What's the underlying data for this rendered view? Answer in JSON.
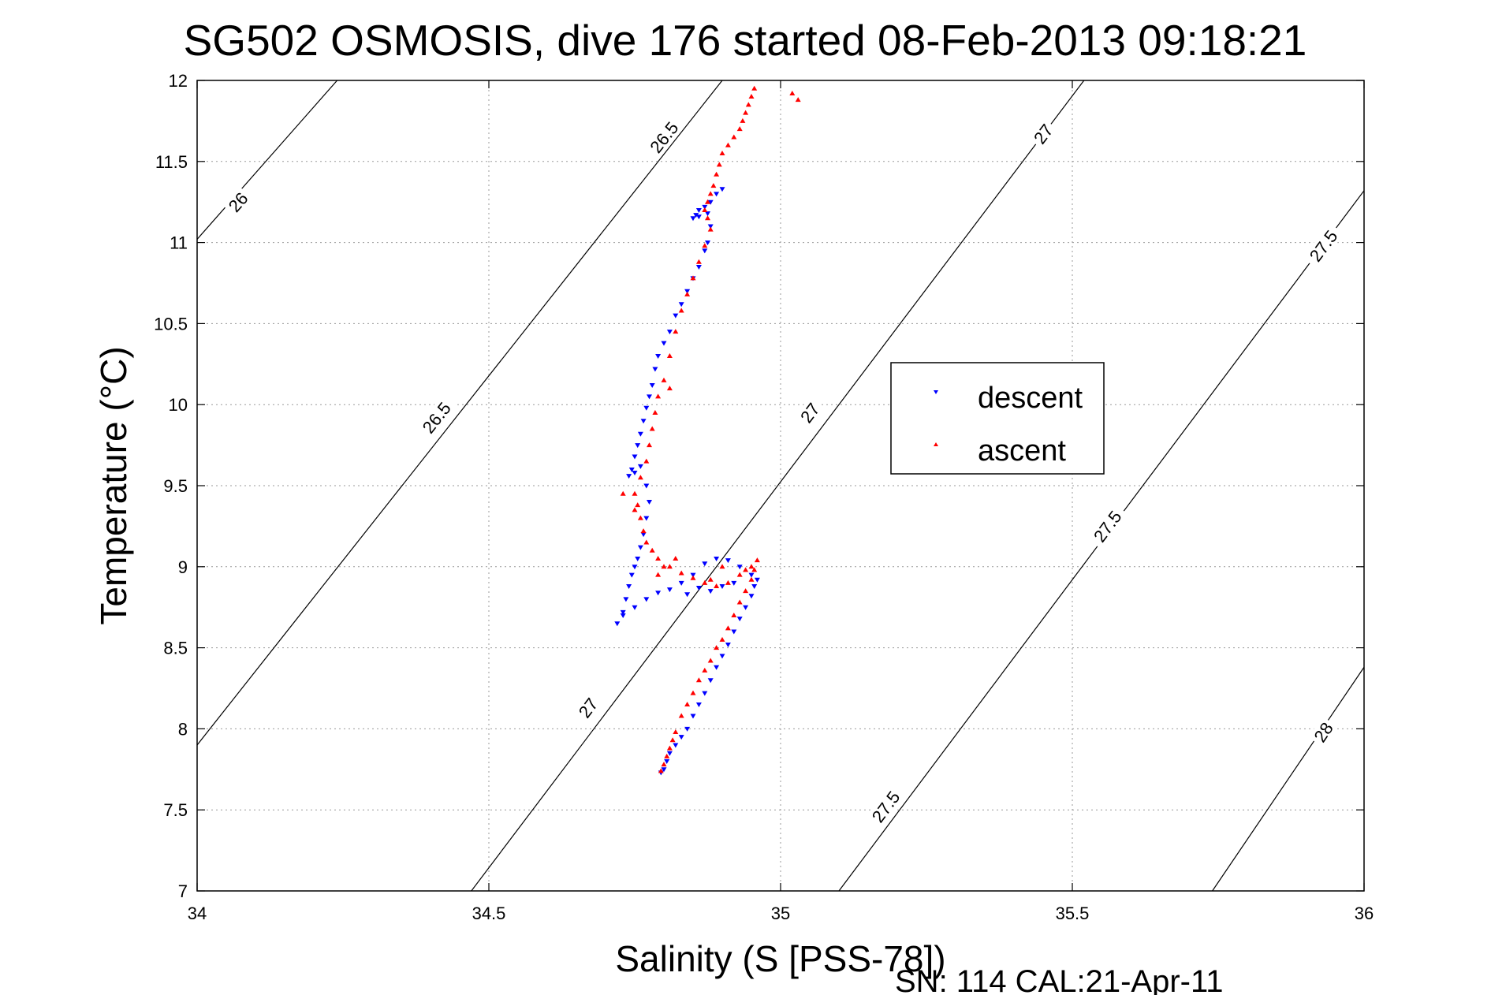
{
  "chart_data": {
    "type": "scatter",
    "title": "SG502 OSMOSIS, dive 176 started 08-Feb-2013 09:18:21",
    "xlabel": "Salinity (S [PSS-78])",
    "ylabel": "Temperature (°C)",
    "xlim": [
      34,
      36
    ],
    "ylim": [
      7,
      12
    ],
    "x_ticks": [
      "34",
      "34.5",
      "35",
      "35.5",
      "36"
    ],
    "y_ticks": [
      "7",
      "7.5",
      "8",
      "8.5",
      "9",
      "9.5",
      "10",
      "10.5",
      "11",
      "11.5",
      "12"
    ],
    "grid": true,
    "legend_position": "right",
    "footer": "SN: 114  CAL:21-Apr-11",
    "contours": [
      {
        "label": "26",
        "points": [
          [
            34.0,
            11.02
          ],
          [
            34.24,
            12.0
          ]
        ],
        "label_at": [
          34.07,
          11.25
        ]
      },
      {
        "label": "26.5",
        "points": [
          [
            34.0,
            7.9
          ],
          [
            34.9,
            12.0
          ]
        ],
        "label_at": [
          34.41,
          9.92
        ]
      },
      {
        "label": "26.5",
        "points": [
          [
            34.0,
            7.9
          ],
          [
            34.9,
            12.0
          ]
        ],
        "label_at": [
          34.8,
          11.65
        ]
      },
      {
        "label": "27",
        "points": [
          [
            34.47,
            7.0
          ],
          [
            35.52,
            12.0
          ]
        ],
        "label_at": [
          34.67,
          8.13
        ]
      },
      {
        "label": "27",
        "points": [
          [
            34.47,
            7.0
          ],
          [
            35.52,
            12.0
          ]
        ],
        "label_at": [
          35.05,
          9.95
        ]
      },
      {
        "label": "27",
        "points": [
          [
            34.47,
            7.0
          ],
          [
            35.52,
            12.0
          ]
        ],
        "label_at": [
          35.45,
          11.67
        ]
      },
      {
        "label": "27.5",
        "points": [
          [
            35.1,
            7.0
          ],
          [
            36.0,
            11.32
          ]
        ],
        "label_at": [
          35.18,
          7.52
        ]
      },
      {
        "label": "27.5",
        "points": [
          [
            35.1,
            7.0
          ],
          [
            36.0,
            11.32
          ]
        ],
        "label_at": [
          35.56,
          9.25
        ]
      },
      {
        "label": "27.5",
        "points": [
          [
            35.1,
            7.0
          ],
          [
            36.0,
            11.32
          ]
        ],
        "label_at": [
          35.93,
          10.98
        ]
      },
      {
        "label": "28",
        "points": [
          [
            35.74,
            7.0
          ],
          [
            36.0,
            8.38
          ]
        ],
        "label_at": [
          35.93,
          7.98
        ]
      }
    ],
    "series": [
      {
        "name": "descent",
        "color": "#0000ff",
        "marker": "triangle-down",
        "points": [
          [
            34.9,
            11.33
          ],
          [
            34.89,
            11.3
          ],
          [
            34.88,
            11.25
          ],
          [
            34.87,
            11.22
          ],
          [
            34.86,
            11.2
          ],
          [
            34.855,
            11.17
          ],
          [
            34.85,
            11.15
          ],
          [
            34.86,
            11.16
          ],
          [
            34.875,
            11.18
          ],
          [
            34.88,
            11.1
          ],
          [
            34.875,
            11.0
          ],
          [
            34.87,
            10.95
          ],
          [
            34.86,
            10.85
          ],
          [
            34.85,
            10.78
          ],
          [
            34.84,
            10.7
          ],
          [
            34.83,
            10.62
          ],
          [
            34.82,
            10.55
          ],
          [
            34.81,
            10.45
          ],
          [
            34.8,
            10.38
          ],
          [
            34.79,
            10.3
          ],
          [
            34.785,
            10.22
          ],
          [
            34.78,
            10.12
          ],
          [
            34.775,
            10.05
          ],
          [
            34.77,
            9.98
          ],
          [
            34.765,
            9.9
          ],
          [
            34.76,
            9.82
          ],
          [
            34.755,
            9.75
          ],
          [
            34.75,
            9.68
          ],
          [
            34.745,
            9.6
          ],
          [
            34.74,
            9.56
          ],
          [
            34.75,
            9.58
          ],
          [
            34.76,
            9.62
          ],
          [
            34.77,
            9.5
          ],
          [
            34.775,
            9.4
          ],
          [
            34.77,
            9.3
          ],
          [
            34.765,
            9.2
          ],
          [
            34.76,
            9.12
          ],
          [
            34.755,
            9.05
          ],
          [
            34.75,
            9.0
          ],
          [
            34.745,
            8.95
          ],
          [
            34.74,
            8.88
          ],
          [
            34.735,
            8.8
          ],
          [
            34.73,
            8.72
          ],
          [
            34.72,
            8.65
          ],
          [
            34.73,
            8.7
          ],
          [
            34.75,
            8.75
          ],
          [
            34.77,
            8.8
          ],
          [
            34.79,
            8.84
          ],
          [
            34.81,
            8.86
          ],
          [
            34.83,
            8.9
          ],
          [
            34.85,
            8.95
          ],
          [
            34.87,
            9.02
          ],
          [
            34.89,
            9.05
          ],
          [
            34.91,
            9.04
          ],
          [
            34.93,
            9.0
          ],
          [
            34.95,
            8.95
          ],
          [
            34.96,
            8.92
          ],
          [
            34.955,
            8.88
          ],
          [
            34.95,
            8.82
          ],
          [
            34.94,
            8.75
          ],
          [
            34.93,
            8.68
          ],
          [
            34.92,
            8.6
          ],
          [
            34.91,
            8.52
          ],
          [
            34.9,
            8.45
          ],
          [
            34.89,
            8.38
          ],
          [
            34.88,
            8.3
          ],
          [
            34.87,
            8.22
          ],
          [
            34.86,
            8.15
          ],
          [
            34.85,
            8.08
          ],
          [
            34.84,
            8.0
          ],
          [
            34.83,
            7.95
          ],
          [
            34.82,
            7.9
          ],
          [
            34.81,
            7.85
          ],
          [
            34.805,
            7.8
          ],
          [
            34.8,
            7.75
          ],
          [
            34.795,
            7.73
          ],
          [
            34.9,
            8.88
          ],
          [
            34.92,
            8.9
          ],
          [
            34.88,
            8.85
          ],
          [
            34.86,
            8.87
          ],
          [
            34.84,
            8.83
          ]
        ]
      },
      {
        "name": "ascent",
        "color": "#ff0000",
        "marker": "triangle-up",
        "points": [
          [
            34.795,
            7.74
          ],
          [
            34.8,
            7.78
          ],
          [
            34.805,
            7.83
          ],
          [
            34.81,
            7.88
          ],
          [
            34.815,
            7.93
          ],
          [
            34.82,
            7.98
          ],
          [
            34.83,
            8.08
          ],
          [
            34.84,
            8.15
          ],
          [
            34.85,
            8.22
          ],
          [
            34.86,
            8.3
          ],
          [
            34.87,
            8.36
          ],
          [
            34.88,
            8.42
          ],
          [
            34.89,
            8.5
          ],
          [
            34.9,
            8.55
          ],
          [
            34.91,
            8.62
          ],
          [
            34.92,
            8.7
          ],
          [
            34.93,
            8.78
          ],
          [
            34.94,
            8.85
          ],
          [
            34.95,
            8.92
          ],
          [
            34.955,
            8.98
          ],
          [
            34.96,
            9.04
          ],
          [
            34.95,
            9.0
          ],
          [
            34.93,
            8.95
          ],
          [
            34.91,
            8.9
          ],
          [
            34.89,
            8.88
          ],
          [
            34.87,
            8.9
          ],
          [
            34.85,
            8.93
          ],
          [
            34.83,
            8.96
          ],
          [
            34.81,
            9.0
          ],
          [
            34.79,
            9.05
          ],
          [
            34.78,
            9.1
          ],
          [
            34.77,
            9.15
          ],
          [
            34.765,
            9.22
          ],
          [
            34.76,
            9.3
          ],
          [
            34.755,
            9.38
          ],
          [
            34.75,
            9.45
          ],
          [
            34.76,
            9.55
          ],
          [
            34.77,
            9.65
          ],
          [
            34.775,
            9.75
          ],
          [
            34.78,
            9.85
          ],
          [
            34.785,
            9.95
          ],
          [
            34.79,
            10.05
          ],
          [
            34.8,
            10.15
          ],
          [
            34.81,
            10.3
          ],
          [
            34.82,
            10.45
          ],
          [
            34.83,
            10.58
          ],
          [
            34.84,
            10.68
          ],
          [
            34.85,
            10.78
          ],
          [
            34.86,
            10.88
          ],
          [
            34.87,
            10.98
          ],
          [
            34.88,
            11.08
          ],
          [
            34.875,
            11.15
          ],
          [
            34.87,
            11.2
          ],
          [
            34.875,
            11.25
          ],
          [
            34.88,
            11.3
          ],
          [
            34.885,
            11.35
          ],
          [
            34.89,
            11.42
          ],
          [
            34.895,
            11.48
          ],
          [
            34.9,
            11.55
          ],
          [
            34.91,
            11.6
          ],
          [
            34.92,
            11.65
          ],
          [
            34.93,
            11.7
          ],
          [
            34.935,
            11.75
          ],
          [
            34.94,
            11.8
          ],
          [
            34.945,
            11.85
          ],
          [
            34.95,
            11.9
          ],
          [
            34.955,
            11.95
          ],
          [
            35.02,
            11.92
          ],
          [
            35.03,
            11.88
          ],
          [
            34.81,
            10.1
          ],
          [
            34.75,
            9.35
          ],
          [
            34.73,
            9.45
          ],
          [
            34.8,
            9.0
          ],
          [
            34.82,
            9.05
          ],
          [
            34.9,
            9.0
          ],
          [
            34.94,
            8.98
          ],
          [
            34.88,
            8.92
          ],
          [
            34.79,
            8.95
          ]
        ]
      }
    ]
  }
}
